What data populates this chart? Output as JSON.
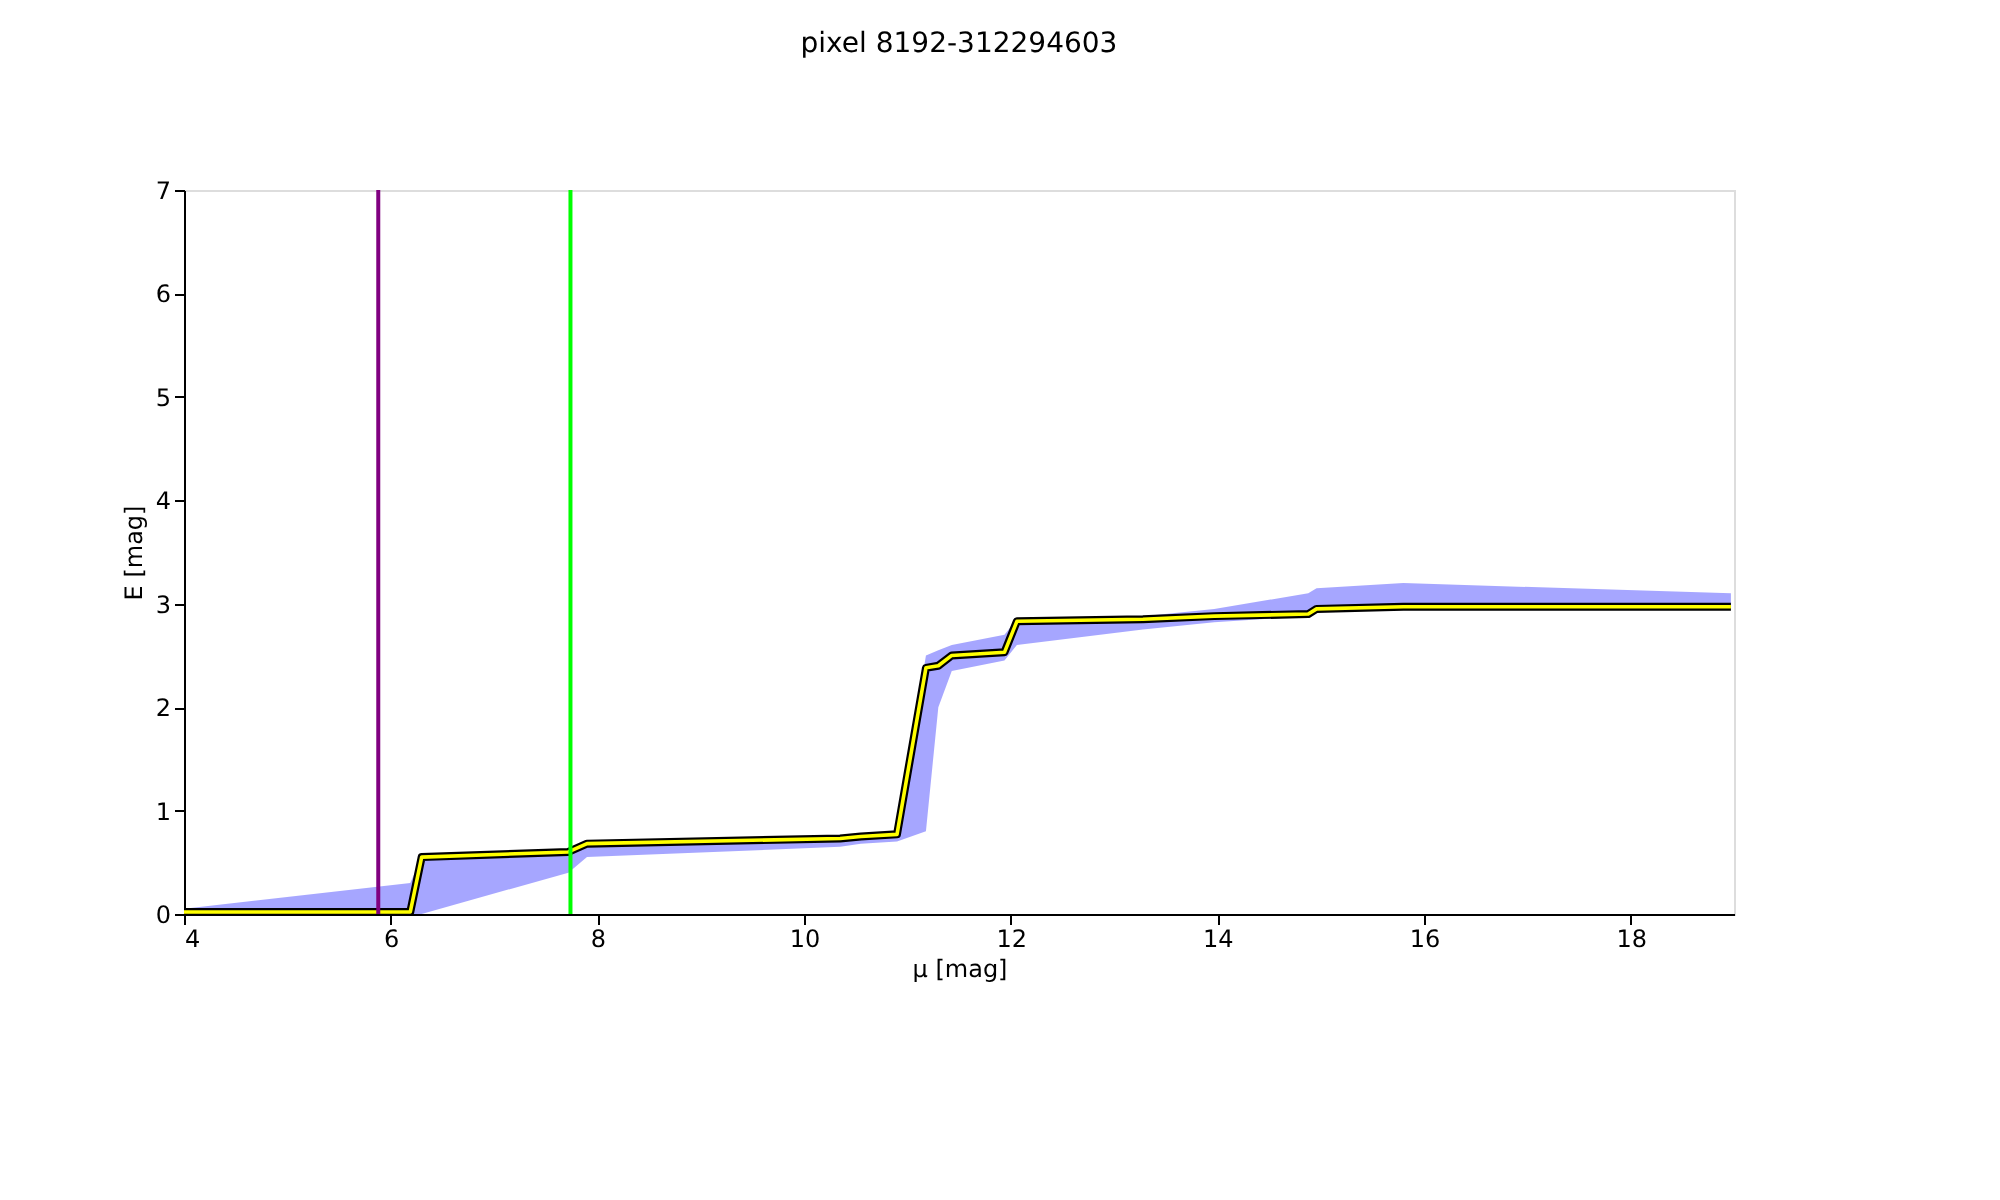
{
  "chart_data": {
    "type": "line",
    "title": "pixel 8192-312294603",
    "xlabel": "μ [mag]",
    "ylabel": "E [mag]",
    "xlim": [
      4,
      19
    ],
    "xticks": [
      4,
      6,
      8,
      10,
      12,
      14,
      16,
      18
    ],
    "ylim": [
      0,
      7
    ],
    "yticks": [
      0,
      1,
      2,
      3,
      4,
      5,
      6,
      7
    ],
    "grid": false,
    "marker": "none",
    "line_style": "solid",
    "series": [
      {
        "color": "#ffff00",
        "x": [
          4,
          6.19,
          6.3,
          7.72,
          7.9,
          10.35,
          10.55,
          10.9,
          11.18,
          11.3,
          11.43,
          11.94,
          12.06,
          13.28,
          13.97,
          14.88,
          14.96,
          15.8,
          18.97
        ],
        "values": [
          0.02,
          0.02,
          0.55,
          0.6,
          0.68,
          0.73,
          0.75,
          0.77,
          2.38,
          2.4,
          2.5,
          2.53,
          2.83,
          2.85,
          2.88,
          2.9,
          2.95,
          2.97,
          2.97
        ],
        "lower": [
          0,
          0,
          0,
          0.4,
          0.55,
          0.65,
          0.68,
          0.7,
          0.8,
          2.0,
          2.35,
          2.45,
          2.6,
          2.75,
          2.82,
          2.88,
          2.92,
          2.95,
          2.95
        ],
        "upper": [
          0.05,
          0.3,
          0.55,
          0.6,
          0.68,
          0.75,
          0.78,
          0.8,
          2.5,
          2.55,
          2.6,
          2.7,
          2.85,
          2.88,
          2.95,
          3.1,
          3.15,
          3.2,
          3.1
        ]
      }
    ],
    "ref_lines": [
      {
        "axis": "x",
        "value": 5.88,
        "color": "#800080"
      },
      {
        "axis": "x",
        "value": 7.74,
        "color": "#00ff00"
      }
    ]
  }
}
